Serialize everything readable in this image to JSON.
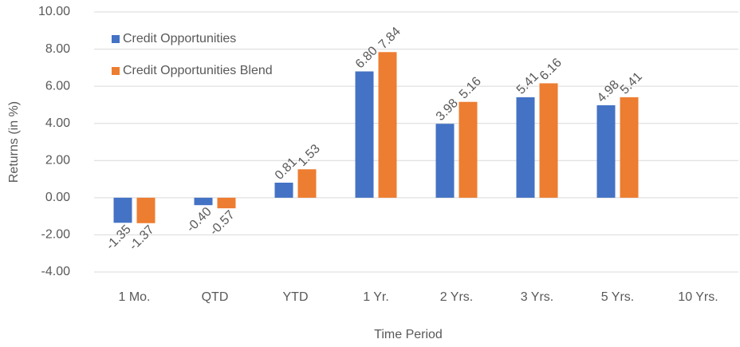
{
  "chart_data": {
    "type": "bar",
    "x_label": "Time Period",
    "y_label": "Returns (in %)",
    "categories": [
      "1 Mo.",
      "QTD",
      "YTD",
      "1 Yr.",
      "2 Yrs.",
      "3 Yrs.",
      "5 Yrs.",
      "10 Yrs."
    ],
    "series": [
      {
        "name": "Credit Opportunities",
        "color": "#4472c4",
        "values": [
          -1.35,
          -0.4,
          0.81,
          6.8,
          3.98,
          5.41,
          4.98,
          null
        ],
        "value_labels": [
          "-1.35",
          "-0.40",
          "0.81",
          "6.80",
          "3.98",
          "5.41",
          "4.98",
          null
        ]
      },
      {
        "name": "Credit Opportunities Blend",
        "color": "#ed7d31",
        "values": [
          -1.37,
          -0.57,
          1.53,
          7.84,
          5.16,
          6.16,
          5.41,
          null
        ],
        "value_labels": [
          "-1.37",
          "-0.57",
          "1.53",
          "7.84",
          "5.16",
          "6.16",
          "5.41",
          null
        ]
      }
    ],
    "ylim": [
      -4,
      10
    ],
    "yticks": [
      {
        "value": -4,
        "label": "-4.00"
      },
      {
        "value": -2,
        "label": "-2.00"
      },
      {
        "value": 0,
        "label": "0.00"
      },
      {
        "value": 2,
        "label": "2.00"
      },
      {
        "value": 4,
        "label": "4.00"
      },
      {
        "value": 6,
        "label": "6.00"
      },
      {
        "value": 8,
        "label": "8.00"
      },
      {
        "value": 10,
        "label": "10.00"
      }
    ],
    "grid": true,
    "legend": "upper left"
  }
}
